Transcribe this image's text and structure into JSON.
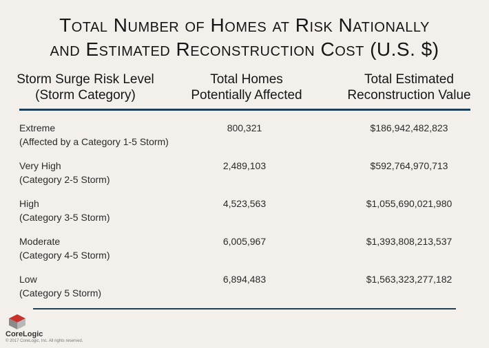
{
  "title": {
    "line1": "Total Number of Homes at Risk Nationally",
    "line2": "and Estimated Reconstruction Cost (U.S. $)"
  },
  "headers": {
    "col1_line1": "Storm Surge Risk Level",
    "col1_line2": "(Storm Category)",
    "col2_line1": "Total Homes",
    "col2_line2": "Potentially Affected",
    "col3_line1": "Total Estimated",
    "col3_line2": "Reconstruction Value"
  },
  "rows": [
    {
      "level": "Extreme",
      "category": "(Affected by a Category 1-5 Storm)",
      "homes": "800,321",
      "value": "$186,942,482,823"
    },
    {
      "level": "Very High",
      "category": "(Category 2-5 Storm)",
      "homes": "2,489,103",
      "value": "$592,764,970,713"
    },
    {
      "level": "High",
      "category": "(Category 3-5 Storm)",
      "homes": "4,523,563",
      "value": "$1,055,690,021,980"
    },
    {
      "level": "Moderate",
      "category": "(Category 4-5 Storm)",
      "homes": "6,005,967",
      "value": "$1,393,808,213,537"
    },
    {
      "level": "Low",
      "category": "(Category 5 Storm)",
      "homes": "6,894,483",
      "value": "$1,563,323,277,182"
    }
  ],
  "footer": {
    "brand": "CoreLogic",
    "copyright": "© 2017 CoreLogic, Inc. All rights reserved."
  },
  "colors": {
    "background": "#f3f0eb",
    "rule": "#1f3f56",
    "logo_red": "#c8322b",
    "logo_gray": "#8a8a8a"
  }
}
